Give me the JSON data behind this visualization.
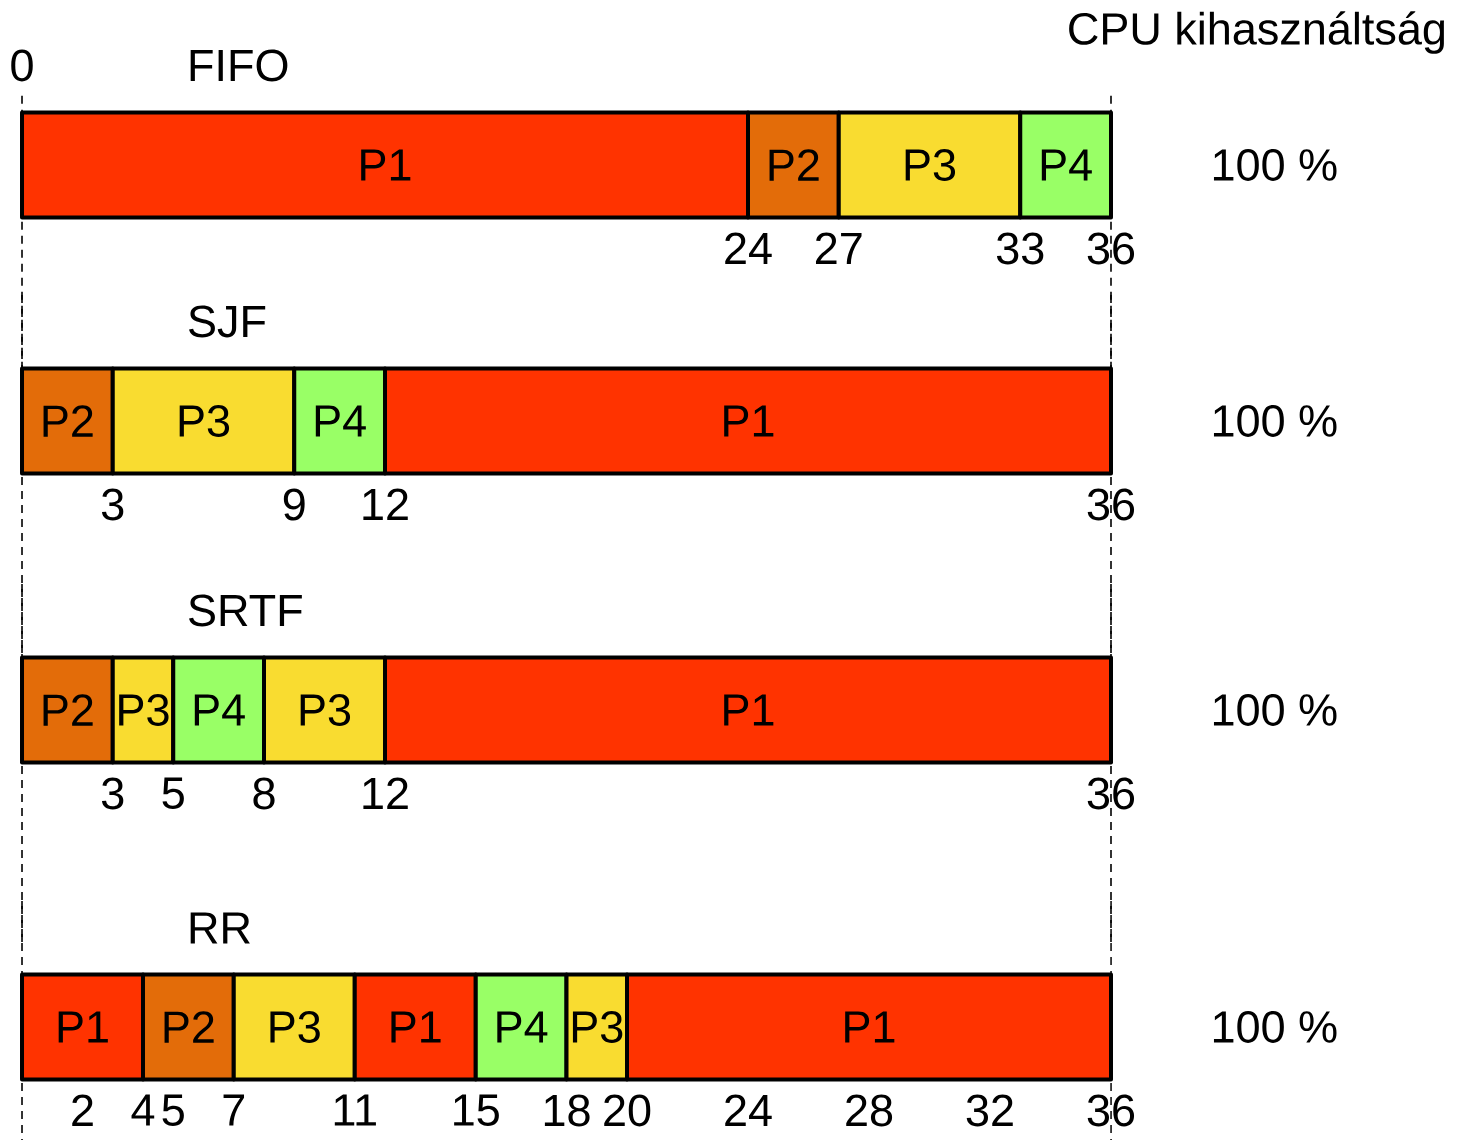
{
  "chart_data": [
    {
      "type": "bar",
      "orientation": "horizontal",
      "title": "FIFO",
      "categories": [
        null
      ],
      "xlim": [
        0,
        36
      ],
      "xticks": [
        24,
        27,
        33,
        36
      ],
      "annotations": [
        "100 %",
        "CPU kihasználtság",
        "0"
      ],
      "ref_lines": [
        {
          "axis": "x",
          "value": 0,
          "line_style": "dashed"
        },
        {
          "axis": "x",
          "value": 36,
          "line_style": "dashed"
        }
      ],
      "series": [
        {
          "name": "P1",
          "color": "#ff3300",
          "values": [
            24
          ],
          "base": [
            0
          ]
        },
        {
          "name": "P2",
          "color": "#e36c09",
          "values": [
            3
          ],
          "base": [
            24
          ]
        },
        {
          "name": "P3",
          "color": "#f9dc30",
          "values": [
            6
          ],
          "base": [
            27
          ]
        },
        {
          "name": "P4",
          "color": "#99ff66",
          "values": [
            3
          ],
          "base": [
            33
          ]
        }
      ]
    },
    {
      "type": "bar",
      "orientation": "horizontal",
      "title": "SJF",
      "categories": [
        null
      ],
      "xlim": [
        0,
        36
      ],
      "xticks": [
        3,
        9,
        12,
        36
      ],
      "annotations": [
        "100 %"
      ],
      "ref_lines": [
        {
          "axis": "x",
          "value": 0,
          "line_style": "dashed"
        },
        {
          "axis": "x",
          "value": 36,
          "line_style": "dashed"
        }
      ],
      "series": [
        {
          "name": "P2",
          "color": "#e36c09",
          "values": [
            3
          ],
          "base": [
            0
          ]
        },
        {
          "name": "P3",
          "color": "#f9dc30",
          "values": [
            6
          ],
          "base": [
            3
          ]
        },
        {
          "name": "P4",
          "color": "#99ff66",
          "values": [
            3
          ],
          "base": [
            9
          ]
        },
        {
          "name": "P1",
          "color": "#ff3300",
          "values": [
            24
          ],
          "base": [
            12
          ]
        }
      ]
    },
    {
      "type": "bar",
      "orientation": "horizontal",
      "title": "SRTF",
      "categories": [
        null
      ],
      "xlim": [
        0,
        36
      ],
      "xticks": [
        3,
        5,
        8,
        12,
        36
      ],
      "annotations": [
        "100 %"
      ],
      "ref_lines": [
        {
          "axis": "x",
          "value": 0,
          "line_style": "dashed"
        },
        {
          "axis": "x",
          "value": 36,
          "line_style": "dashed"
        }
      ],
      "series": [
        {
          "name": "P2",
          "color": "#e36c09",
          "values": [
            3
          ],
          "base": [
            0
          ]
        },
        {
          "name": "P3",
          "color": "#f9dc30",
          "values": [
            2
          ],
          "base": [
            3
          ]
        },
        {
          "name": "P4",
          "color": "#99ff66",
          "values": [
            3
          ],
          "base": [
            5
          ]
        },
        {
          "name": "P3",
          "color": "#f9dc30",
          "values": [
            4
          ],
          "base": [
            8
          ]
        },
        {
          "name": "P1",
          "color": "#ff3300",
          "values": [
            24
          ],
          "base": [
            12
          ]
        }
      ]
    },
    {
      "type": "bar",
      "orientation": "horizontal",
      "title": "RR",
      "categories": [
        null
      ],
      "xlim": [
        0,
        36
      ],
      "xticks": [
        2,
        4,
        5,
        7,
        11,
        15,
        18,
        20,
        24,
        28,
        32,
        36
      ],
      "annotations": [
        "100 %"
      ],
      "ref_lines": [
        {
          "axis": "x",
          "value": 0,
          "line_style": "dashed"
        },
        {
          "axis": "x",
          "value": 36,
          "line_style": "dashed"
        }
      ],
      "series": [
        {
          "name": "P1",
          "color": "#ff3300",
          "values": [
            4
          ],
          "base": [
            0
          ]
        },
        {
          "name": "P2",
          "color": "#e36c09",
          "values": [
            3
          ],
          "base": [
            4
          ]
        },
        {
          "name": "P3",
          "color": "#f9dc30",
          "values": [
            4
          ],
          "base": [
            7
          ]
        },
        {
          "name": "P1",
          "color": "#ff3300",
          "values": [
            4
          ],
          "base": [
            11
          ]
        },
        {
          "name": "P4",
          "color": "#99ff66",
          "values": [
            3
          ],
          "base": [
            15
          ]
        },
        {
          "name": "P3",
          "color": "#f9dc30",
          "values": [
            2
          ],
          "base": [
            18
          ]
        },
        {
          "name": "P1",
          "color": "#ff3300",
          "values": [
            16
          ],
          "base": [
            20
          ]
        }
      ]
    }
  ]
}
